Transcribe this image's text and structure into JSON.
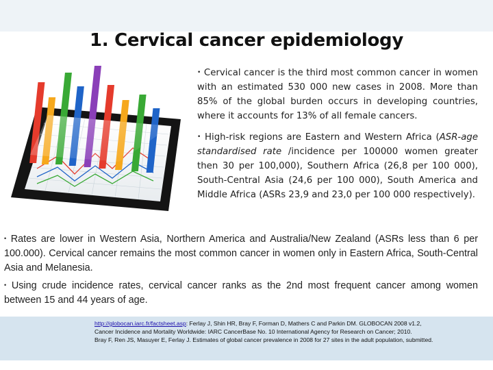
{
  "slide": {
    "title": "1. Cervical cancer epidemiology",
    "paragraphs": {
      "p1": "Cervical cancer is the third most common cancer in women with an estimated 530 000 new cases in 2008. More than 85% of the global burden occurs in developing countries, where it accounts for 13% of all female cancers.",
      "p2_prefix": "High-risk regions are Eastern and Western Africa (",
      "p2_italic": "ASR-age standardised rate",
      "p2_suffix": " /incidence per 100000 women greater then 30 per 100,000), Southern Africa (26,8 per 100 000), South-Central Asia (24,6 per 100 000), South America and Middle Africa (ASRs 23,9 and 23,0 per 100 000 respectively).",
      "p3": "Rates are lower in Western Asia, Northern America and Australia/New Zealand (ASRs less than 6 per 100.000). Cervical cancer remains the most common cancer in women only in Eastern Africa, South-Central Asia and Melanesia.",
      "p4": "Using crude incidence rates, cervical cancer ranks as the 2nd most frequent cancer among women between 15 and 44 years of age."
    },
    "bullet": "•",
    "references": {
      "link": "http://globocan.iarc.fr/factsheet.asp",
      "line1_rest": ": Ferlay J, Shin HR, Bray F, Forman D, Mathers C and Parkin DM. GLOBOCAN 2008 v1.2,",
      "line2": "Cancer Incidence and Mortality Worldwide: IARC CancerBase No. 10 International Agency for Research on Cancer; 2010.",
      "line3": "Bray F, Ren JS, Masuyer E, Ferlay J. Estimates of global cancer prevalence in 2008 for 27 sites in the adult population, submitted."
    }
  },
  "colors": {
    "band": "#eef3f7",
    "reference_band": "#d6e4ef",
    "bars": [
      "#e53b2c",
      "#f6a81c",
      "#39a935",
      "#1f64c8",
      "#8a3fb8"
    ]
  },
  "icons": [
    "tablet-chart-illustration"
  ]
}
